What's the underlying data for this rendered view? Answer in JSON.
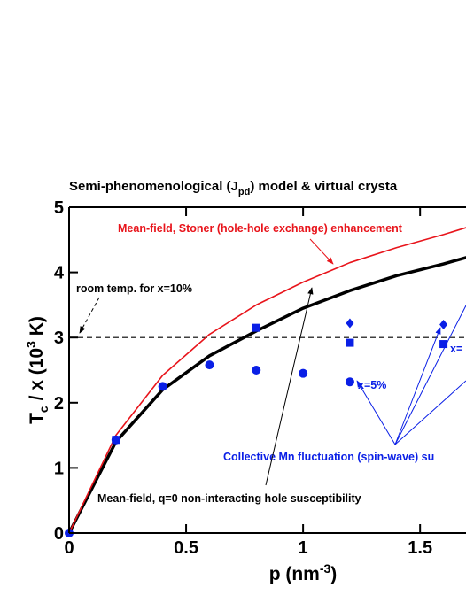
{
  "chart_data": {
    "type": "line",
    "title_parts": [
      "Semi-phenomenological (J",
      "pd",
      ") model & virtual crysta"
    ],
    "ylabel_parts": [
      "T",
      "c",
      " / x (10",
      "3",
      " K)"
    ],
    "xlabel_parts": [
      "p (nm",
      "-3",
      ")"
    ],
    "xlim": [
      0,
      1.7
    ],
    "ylim": [
      0,
      5
    ],
    "xticks": [
      0,
      0.5,
      1,
      1.5
    ],
    "yticks": [
      0,
      1,
      2,
      3,
      4,
      5
    ],
    "reference_line": 3,
    "series": [
      {
        "color": "#000000",
        "line_width": 3.5,
        "marker": "none",
        "x": [
          0,
          0.2,
          0.4,
          0.6,
          0.8,
          1.0,
          1.2,
          1.4,
          1.6,
          1.7
        ],
        "values": [
          0,
          1.4,
          2.2,
          2.72,
          3.1,
          3.45,
          3.72,
          3.95,
          4.13,
          4.23
        ]
      },
      {
        "color": "#e8141b",
        "line_width": 1.6,
        "marker": "none",
        "x": [
          0,
          0.2,
          0.4,
          0.6,
          0.8,
          1.0,
          1.2,
          1.4,
          1.6,
          1.7
        ],
        "values": [
          0,
          1.5,
          2.42,
          3.05,
          3.5,
          3.85,
          4.15,
          4.38,
          4.58,
          4.69
        ]
      },
      {
        "color": "#0a1fe6",
        "line_width": 0,
        "marker": "circle",
        "x": [
          0,
          0.2,
          0.4,
          0.6,
          0.8,
          1.0,
          1.2
        ],
        "values": [
          0,
          1.43,
          2.25,
          2.58,
          2.5,
          2.45,
          2.32
        ]
      },
      {
        "color": "#0a1fe6",
        "line_width": 0,
        "marker": "square",
        "x": [
          0.2,
          0.8,
          1.2,
          1.6
        ],
        "values": [
          1.43,
          3.15,
          2.92,
          2.9
        ]
      },
      {
        "color": "#0a1fe6",
        "line_width": 0,
        "marker": "diamond",
        "x": [
          1.2,
          1.6
        ],
        "values": [
          3.22,
          3.2
        ]
      }
    ],
    "annotations": {
      "stoner": "Mean-field, Stoner (hole-hole exchange) enhancement",
      "room_temp": "room temp. for x=10%",
      "x5": "x=5%",
      "x_cut": "x=",
      "collective": "Collective Mn fluctuation (spin-wave) su",
      "mean_field": "Mean-field, q=0 non-interacting hole susceptibility"
    }
  }
}
